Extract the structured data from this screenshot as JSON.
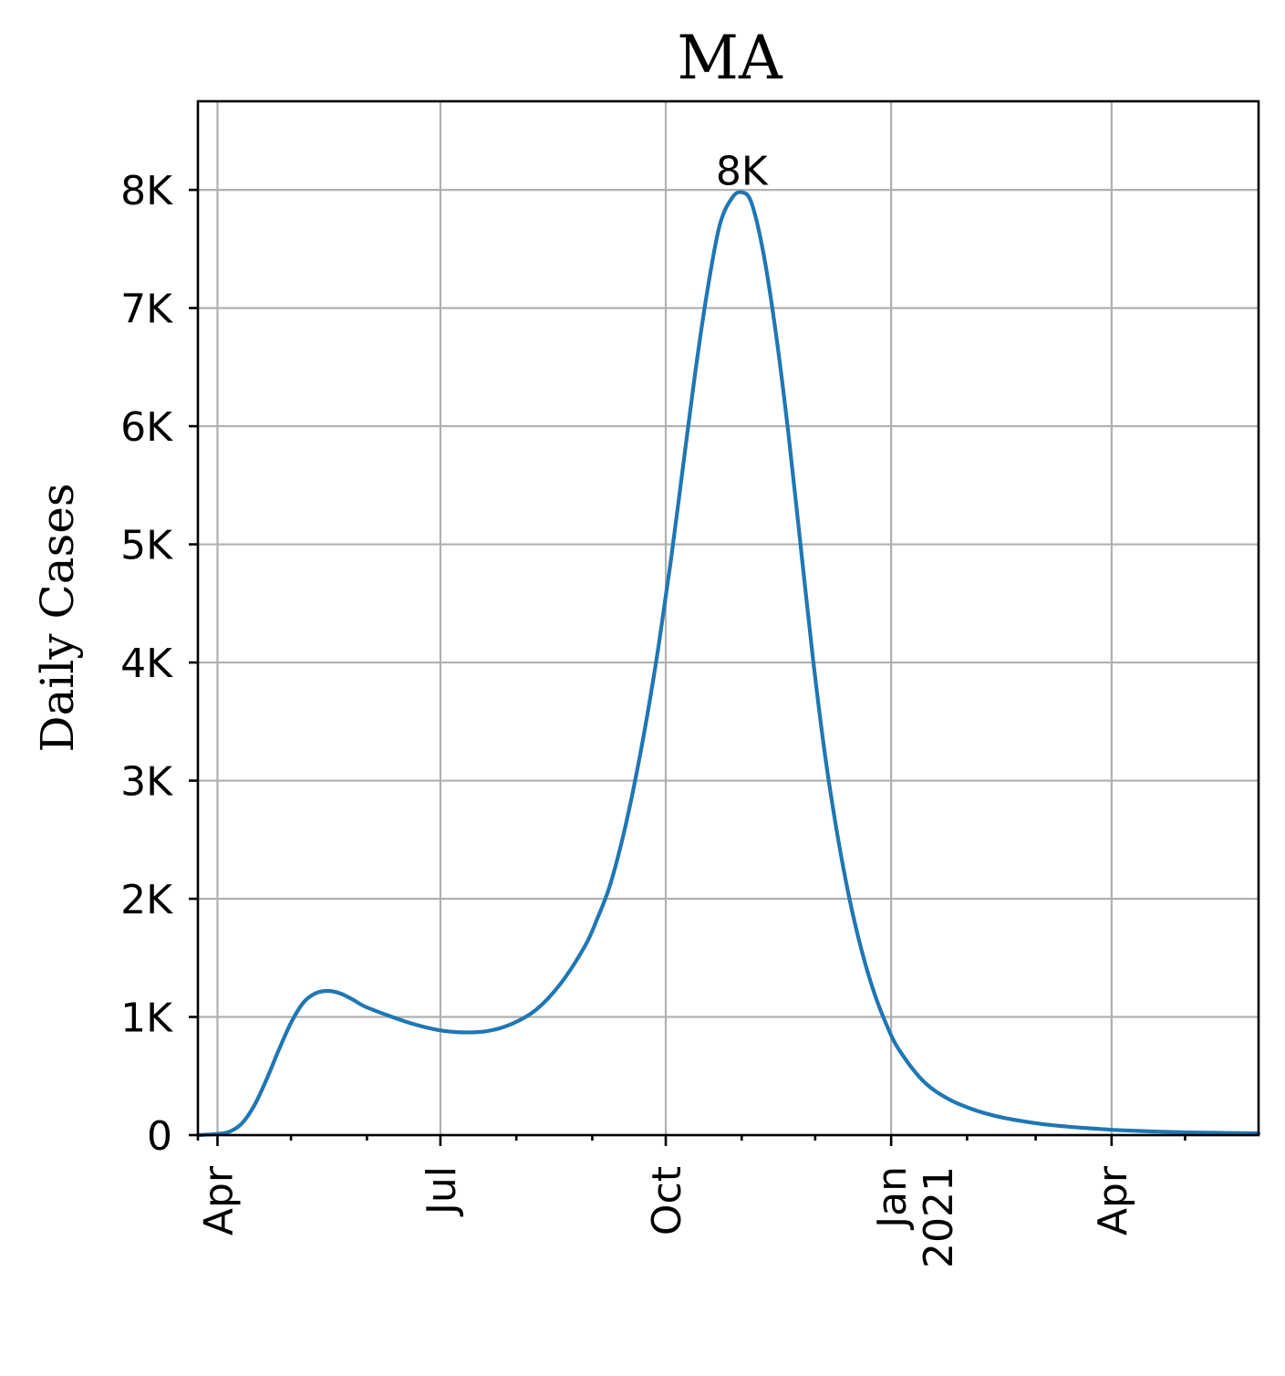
{
  "chart_data": {
    "type": "line",
    "title": "MA",
    "ylabel": "Daily Cases",
    "xlabel": "",
    "x_range": [
      "2020-03-24",
      "2021-05-31"
    ],
    "ylim": [
      0,
      8750
    ],
    "grid": true,
    "x_ticks": [
      {
        "date": "2020-04-01",
        "label": "Apr",
        "label2": ""
      },
      {
        "date": "2020-07-01",
        "label": "Jul",
        "label2": ""
      },
      {
        "date": "2020-10-01",
        "label": "Oct",
        "label2": ""
      },
      {
        "date": "2021-01-01",
        "label": "Jan",
        "label2": "2021"
      },
      {
        "date": "2021-04-01",
        "label": "Apr",
        "label2": ""
      }
    ],
    "x_minor_ticks": [
      "2020-05-01",
      "2020-06-01",
      "2020-08-01",
      "2020-09-01",
      "2020-11-01",
      "2020-12-01",
      "2021-02-01",
      "2021-03-01",
      "2021-05-01"
    ],
    "y_ticks": [
      {
        "value": 0,
        "label": "0"
      },
      {
        "value": 1000,
        "label": "1K"
      },
      {
        "value": 2000,
        "label": "2K"
      },
      {
        "value": 3000,
        "label": "3K"
      },
      {
        "value": 4000,
        "label": "4K"
      },
      {
        "value": 5000,
        "label": "5K"
      },
      {
        "value": 6000,
        "label": "6K"
      },
      {
        "value": 7000,
        "label": "7K"
      },
      {
        "value": 8000,
        "label": "8K"
      }
    ],
    "series": [
      {
        "color": "#1f77b4",
        "points": [
          [
            "2020-03-24",
            0
          ],
          [
            "2020-04-01",
            10
          ],
          [
            "2020-04-06",
            30
          ],
          [
            "2020-04-11",
            100
          ],
          [
            "2020-04-16",
            250
          ],
          [
            "2020-04-21",
            470
          ],
          [
            "2020-04-26",
            720
          ],
          [
            "2020-05-01",
            950
          ],
          [
            "2020-05-06",
            1120
          ],
          [
            "2020-05-11",
            1200
          ],
          [
            "2020-05-16",
            1220
          ],
          [
            "2020-05-21",
            1200
          ],
          [
            "2020-05-26",
            1150
          ],
          [
            "2020-05-31",
            1090
          ],
          [
            "2020-06-10",
            1010
          ],
          [
            "2020-06-20",
            940
          ],
          [
            "2020-06-30",
            890
          ],
          [
            "2020-07-10",
            870
          ],
          [
            "2020-07-20",
            880
          ],
          [
            "2020-07-30",
            940
          ],
          [
            "2020-08-09",
            1060
          ],
          [
            "2020-08-19",
            1280
          ],
          [
            "2020-08-29",
            1600
          ],
          [
            "2020-09-03",
            1830
          ],
          [
            "2020-09-08",
            2100
          ],
          [
            "2020-09-13",
            2480
          ],
          [
            "2020-09-18",
            2950
          ],
          [
            "2020-09-23",
            3500
          ],
          [
            "2020-09-28",
            4130
          ],
          [
            "2020-10-03",
            4850
          ],
          [
            "2020-10-08",
            5650
          ],
          [
            "2020-10-13",
            6450
          ],
          [
            "2020-10-18",
            7150
          ],
          [
            "2020-10-23",
            7700
          ],
          [
            "2020-10-28",
            7930
          ],
          [
            "2020-11-01",
            7980
          ],
          [
            "2020-11-05",
            7890
          ],
          [
            "2020-11-10",
            7450
          ],
          [
            "2020-11-15",
            6780
          ],
          [
            "2020-11-20",
            5950
          ],
          [
            "2020-11-25",
            5000
          ],
          [
            "2020-11-30",
            4050
          ],
          [
            "2020-12-05",
            3220
          ],
          [
            "2020-12-10",
            2550
          ],
          [
            "2020-12-15",
            2000
          ],
          [
            "2020-12-20",
            1560
          ],
          [
            "2020-12-25",
            1210
          ],
          [
            "2020-12-30",
            940
          ],
          [
            "2021-01-04",
            730
          ],
          [
            "2021-01-14",
            460
          ],
          [
            "2021-01-24",
            310
          ],
          [
            "2021-02-03",
            220
          ],
          [
            "2021-02-13",
            160
          ],
          [
            "2021-02-23",
            120
          ],
          [
            "2021-03-05",
            90
          ],
          [
            "2021-03-15",
            70
          ],
          [
            "2021-03-25",
            55
          ],
          [
            "2021-04-04",
            42
          ],
          [
            "2021-04-19",
            30
          ],
          [
            "2021-05-04",
            22
          ],
          [
            "2021-05-31",
            15
          ]
        ]
      }
    ],
    "annotations": [
      {
        "text": "8K",
        "x": "2020-11-01",
        "y": 7980
      }
    ]
  }
}
